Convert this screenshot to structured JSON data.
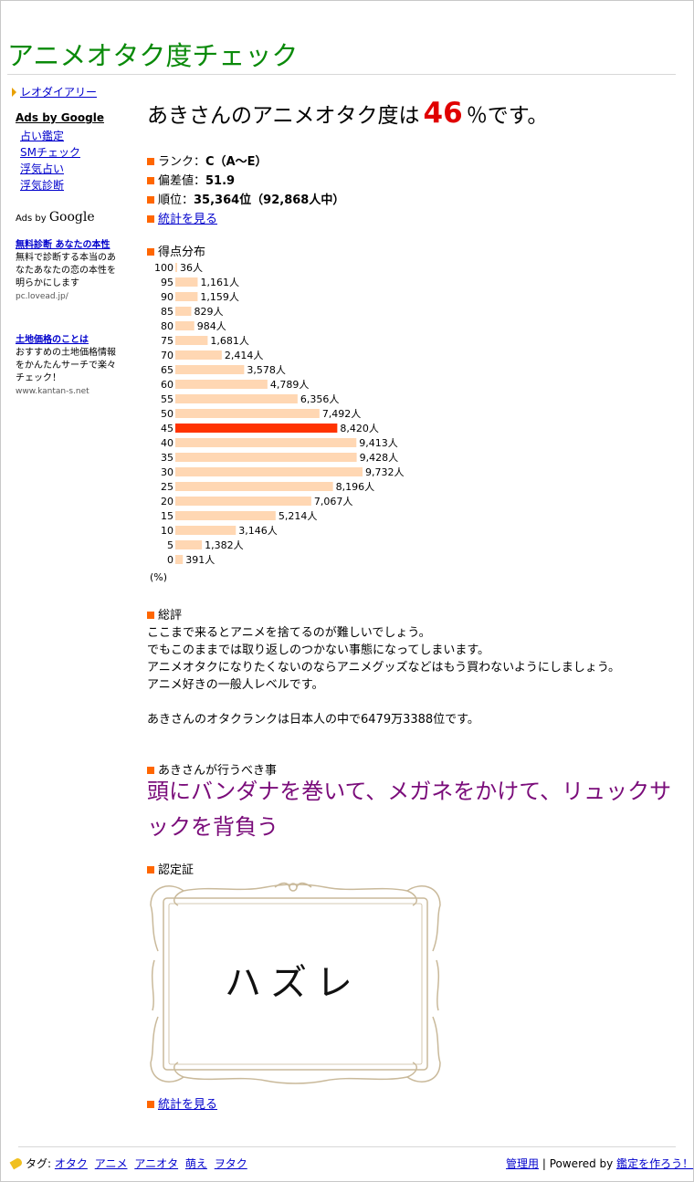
{
  "site": {
    "title": "アニメオタク度チェック",
    "blog_link": "レオダイアリー"
  },
  "sidebar": {
    "ads_title": "Ads by Google",
    "ad_links": [
      "占い鑑定",
      "SMチェック",
      "浮気占い",
      "浮気診断"
    ],
    "ads_by_prefix": "Ads by",
    "ads_by_brand": "Google",
    "ads": [
      {
        "title": "無料診断 あなたの本性",
        "desc": "無料で診断する本当のあなたあなたの恋の本性を明らかにします",
        "url": "pc.lovead.jp/"
      },
      {
        "title": "土地価格のことは",
        "desc": "おすすめの土地価格情報をかんたんサーチで楽々チェック！",
        "url": "www.kantan-s.net"
      }
    ]
  },
  "result": {
    "name_prefix": "あきさんのアニメオタク度は",
    "percent": "46",
    "suffix": "％です。",
    "rank_label": "ランク：",
    "rank_value": "C（A～E）",
    "deviation_label": "偏差値：",
    "deviation_value": "51.9",
    "order_label": "順位：",
    "order_value": "35,364位（92,868人中）",
    "stats_link": "統計を見る"
  },
  "chart_title": "得点分布",
  "chart_unit": "(%)",
  "chart_data": {
    "type": "bar",
    "orientation": "horizontal",
    "categories": [
      "100",
      "95",
      "90",
      "85",
      "80",
      "75",
      "70",
      "65",
      "60",
      "55",
      "50",
      "45",
      "40",
      "35",
      "30",
      "25",
      "20",
      "15",
      "10",
      "5",
      "0"
    ],
    "values": [
      36,
      1161,
      1159,
      829,
      984,
      1681,
      2414,
      3578,
      4789,
      6356,
      7492,
      8420,
      9413,
      9428,
      9732,
      8196,
      7067,
      5214,
      3146,
      1382,
      391
    ],
    "labels": [
      "36人",
      "1,161人",
      "1,159人",
      "829人",
      "984人",
      "1,681人",
      "2,414人",
      "3,578人",
      "4,789人",
      "6,356人",
      "7,492人",
      "8,420人",
      "9,413人",
      "9,428人",
      "9,732人",
      "8,196人",
      "7,067人",
      "5,214人",
      "3,146人",
      "1,382人",
      "391人"
    ],
    "highlight": "45",
    "bar_color": "#ffd7b3",
    "highlight_color": "#ff3300"
  },
  "review": {
    "heading": "総評",
    "lines": [
      "ここまで来るとアニメを捨てるのが難しいでしょう。",
      "でもこのままでは取り返しのつかない事態になってしまいます。",
      "アニメオタクになりたくないのならアニメグッズなどはもう買わないようにしましょう。",
      "アニメ好きの一般人レベルです。"
    ],
    "rank_line": "あきさんのオタクランクは日本人の中で6479万3388位です。"
  },
  "action": {
    "heading": "あきさんが行うべき事",
    "text": "頭にバンダナを巻いて、メガネをかけて、リュックサックを背負う"
  },
  "certificate": {
    "heading": "認定証",
    "text": "ハズレ"
  },
  "footer": {
    "tag_label": "タグ:",
    "tags": [
      "オタク",
      "アニメ",
      "アニオタ",
      "萌え",
      "ヲタク"
    ],
    "admin": "管理用",
    "separator": "|",
    "powered_by": "Powered by",
    "make_link": "鑑定を作ろう！"
  },
  "colors": {
    "title_green": "#0a8a0a",
    "percent_red": "#e00000",
    "action_purple": "#7a0c7a",
    "bullet_orange": "#ff6600"
  }
}
